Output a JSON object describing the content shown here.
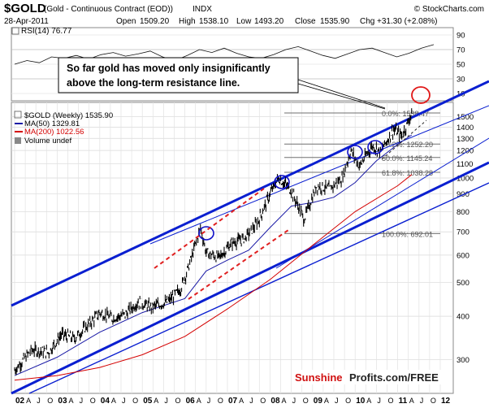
{
  "header": {
    "symbol": "$GOLD",
    "description": "(Gold - Continuous Contract (EOD))",
    "exchange": "INDX",
    "date": "28-Apr-2011",
    "open_label": "Open",
    "open": "1509.20",
    "high_label": "High",
    "high": "1538.10",
    "low_label": "Low",
    "low": "1493.20",
    "close_label": "Close",
    "close": "1535.90",
    "chg_label": "Chg",
    "chg": "+31.30 (+2.08%)",
    "copyright": "© StockCharts.com"
  },
  "rsi": {
    "label": "RSI(14) 76.77",
    "ticks": [
      "90",
      "70",
      "50",
      "30",
      "10"
    ],
    "values": [
      50,
      55,
      52,
      60,
      58,
      62,
      57,
      63,
      66,
      61,
      64,
      68,
      60,
      55,
      62,
      70,
      66,
      72,
      65,
      60,
      58,
      63,
      70,
      74,
      68,
      62,
      58,
      64,
      70,
      72,
      66,
      60,
      65,
      72,
      76.77
    ]
  },
  "legend": {
    "gold": "$GOLD (Weekly) 1535.90",
    "ma50": "MA(50) 1329.81",
    "ma200": "MA(200) 1022.56",
    "volume": "Volume undef"
  },
  "annotation": "So far gold has moved only insignificantly above the long-term resistance line.",
  "fib_labels": [
    "0.0%: 1538.47",
    "38.2%: 1252.20",
    "50.0%: 1145.24",
    "61.8%: 1038.28",
    "100.0%: 692.01"
  ],
  "watermark": {
    "brand1": "Sunshine",
    "brand2": "Profits.com/FREE"
  },
  "colors": {
    "price": "#000000",
    "ma50": "#1a1aa6",
    "ma200": "#d40000",
    "channel": "#0a1fd0",
    "fib": "#707070",
    "dashed_red": "#e02020",
    "circle_blue": "#1010c8",
    "circle_red": "#e01818"
  },
  "chart_data": {
    "type": "line",
    "title": "$GOLD (Gold - Continuous Contract (EOD)) INDX",
    "scale": "log",
    "ylim": [
      240,
      1650
    ],
    "y_ticks": [
      300,
      400,
      500,
      600,
      700,
      800,
      900,
      1000,
      1100,
      1200,
      1300,
      1400,
      1500
    ],
    "x_labels": [
      "02",
      "A",
      "J",
      "O",
      "03",
      "A",
      "J",
      "O",
      "04",
      "A",
      "J",
      "O",
      "05",
      "A",
      "J",
      "O",
      "06",
      "A",
      "J",
      "O",
      "07",
      "A",
      "J",
      "O",
      "08",
      "A",
      "J",
      "O",
      "09",
      "A",
      "J",
      "O",
      "10",
      "A",
      "J",
      "O",
      "11",
      "A",
      "J",
      "O",
      "12"
    ],
    "x_range": [
      2002.0,
      2012.0
    ],
    "series": [
      {
        "name": "$GOLD (Weekly)",
        "x": [
          2002.0,
          2002.4,
          2002.8,
          2003.1,
          2003.4,
          2003.8,
          2004.0,
          2004.3,
          2004.6,
          2004.9,
          2005.2,
          2005.6,
          2005.9,
          2006.1,
          2006.37,
          2006.5,
          2006.8,
          2007.1,
          2007.4,
          2007.7,
          2008.0,
          2008.2,
          2008.5,
          2008.8,
          2008.9,
          2009.1,
          2009.4,
          2009.7,
          2009.9,
          2010.1,
          2010.4,
          2010.6,
          2010.9,
          2011.1,
          2011.33
        ],
        "values": [
          280,
          320,
          315,
          355,
          345,
          385,
          410,
          395,
          405,
          440,
          425,
          440,
          480,
          560,
          720,
          610,
          590,
          650,
          670,
          740,
          900,
          1000,
          920,
          760,
          820,
          950,
          930,
          1000,
          1200,
          1080,
          1240,
          1190,
          1380,
          1320,
          1536
        ]
      },
      {
        "name": "MA(50)",
        "x": [
          2002.0,
          2003.0,
          2004.0,
          2005.0,
          2006.0,
          2006.5,
          2007.0,
          2007.5,
          2008.0,
          2008.5,
          2009.0,
          2009.5,
          2010.0,
          2010.5,
          2011.0,
          2011.33
        ],
        "values": [
          270,
          305,
          360,
          410,
          450,
          540,
          580,
          620,
          720,
          830,
          850,
          880,
          970,
          1120,
          1250,
          1330
        ]
      },
      {
        "name": "MA(200)",
        "x": [
          2002.0,
          2003.0,
          2004.0,
          2005.0,
          2006.0,
          2007.0,
          2008.0,
          2009.0,
          2010.0,
          2011.0,
          2011.33
        ],
        "values": [
          262,
          270,
          285,
          310,
          350,
          420,
          510,
          640,
          800,
          950,
          1023
        ]
      }
    ]
  }
}
